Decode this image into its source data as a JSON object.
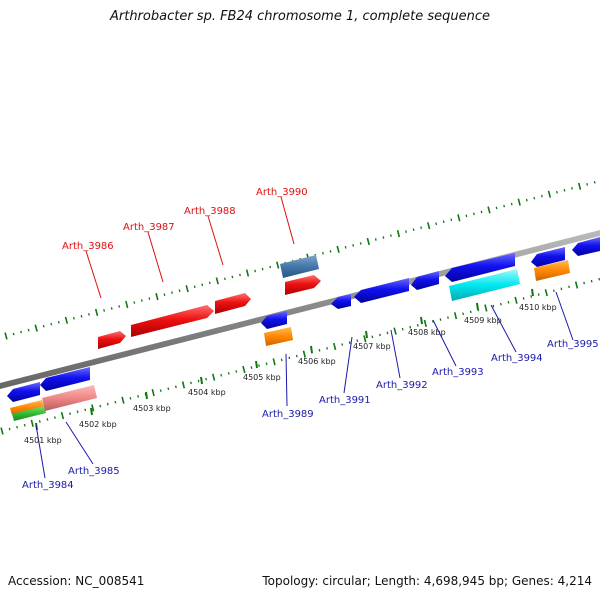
{
  "title": "Arthrobacter sp. FB24 chromosome 1, complete sequence",
  "footer": {
    "accession": "Accession: NC_008541",
    "summary": "Topology: circular; Length: 4,698,945 bp; Genes: 4,214"
  },
  "colors": {
    "red": "#ee1111",
    "blue": "#1111ee",
    "steel": "#4477aa",
    "orange": "#ff8800",
    "pink": "#ee8888",
    "green": "#33bb33",
    "cyan": "#00e8f0",
    "backbone": "#888888",
    "tick": "#117711",
    "label_top": "#dd1111",
    "label_bottom": "#1a1aa8"
  },
  "ticks": [
    "4501 kbp",
    "4502 kbp",
    "4503 kbp",
    "4504 kbp",
    "4505 kbp",
    "4506 kbp",
    "4507 kbp",
    "4508 kbp",
    "4509 kbp",
    "4510 kbp"
  ],
  "gene_labels_top": [
    "Arth_3986",
    "Arth_3987",
    "Arth_3988",
    "Arth_3990"
  ],
  "gene_labels_bottom": [
    "Arth_3984",
    "Arth_3985",
    "Arth_3989",
    "Arth_3991",
    "Arth_3992",
    "Arth_3993",
    "Arth_3994",
    "Arth_3995"
  ]
}
